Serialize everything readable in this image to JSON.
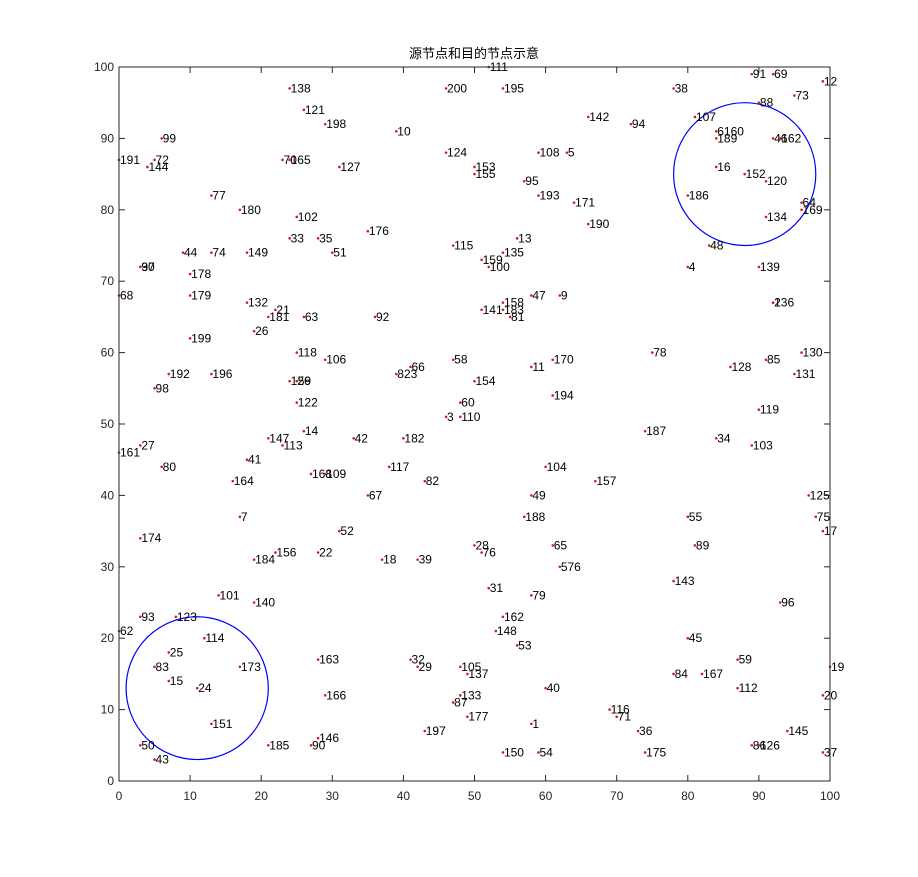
{
  "colors": {
    "background": "#ffffff",
    "axes": "#262626",
    "node": "#d7191c",
    "circle": "#0000ff"
  },
  "chart_data": {
    "type": "scatter",
    "title": "源节点和目的节点示意",
    "xlabel": "",
    "ylabel": "",
    "xlim": [
      0,
      100
    ],
    "ylim": [
      0,
      100
    ],
    "xticks": [
      0,
      10,
      20,
      30,
      40,
      50,
      60,
      70,
      80,
      90,
      100
    ],
    "yticks": [
      0,
      10,
      20,
      30,
      40,
      50,
      60,
      70,
      80,
      90,
      100
    ],
    "grid": false,
    "legend": "none",
    "circles": [
      {
        "cx": 11,
        "cy": 13,
        "r": 10
      },
      {
        "cx": 88,
        "cy": 85,
        "r": 10
      }
    ],
    "points": [
      {
        "label": "111",
        "x": 52,
        "y": 100
      },
      {
        "label": "91",
        "x": 89,
        "y": 99
      },
      {
        "label": "69",
        "x": 92,
        "y": 99
      },
      {
        "label": "12",
        "x": 99,
        "y": 98
      },
      {
        "label": "138",
        "x": 24,
        "y": 97
      },
      {
        "label": "200",
        "x": 46,
        "y": 97
      },
      {
        "label": "195",
        "x": 54,
        "y": 97
      },
      {
        "label": "38",
        "x": 78,
        "y": 97
      },
      {
        "label": "73",
        "x": 95,
        "y": 96
      },
      {
        "label": "88",
        "x": 90,
        "y": 95
      },
      {
        "label": "121",
        "x": 26,
        "y": 94
      },
      {
        "label": "142",
        "x": 66,
        "y": 93
      },
      {
        "label": "107",
        "x": 81,
        "y": 93
      },
      {
        "label": "198",
        "x": 29,
        "y": 92
      },
      {
        "label": "94",
        "x": 72,
        "y": 92
      },
      {
        "label": "10",
        "x": 39,
        "y": 91
      },
      {
        "label": "6160",
        "x": 84,
        "y": 91
      },
      {
        "label": "189",
        "x": 84,
        "y": 90
      },
      {
        "label": "46",
        "x": 92,
        "y": 90
      },
      {
        "label": "162",
        "x": 93,
        "y": 90
      },
      {
        "label": "99",
        "x": 6,
        "y": 90
      },
      {
        "label": "124",
        "x": 46,
        "y": 88
      },
      {
        "label": "108",
        "x": 59,
        "y": 88
      },
      {
        "label": "5",
        "x": 63,
        "y": 88
      },
      {
        "label": "191",
        "x": 0,
        "y": 87
      },
      {
        "label": "72",
        "x": 5,
        "y": 87
      },
      {
        "label": "70",
        "x": 23,
        "y": 87
      },
      {
        "label": "165",
        "x": 24,
        "y": 87
      },
      {
        "label": "144",
        "x": 4,
        "y": 86
      },
      {
        "label": "127",
        "x": 31,
        "y": 86
      },
      {
        "label": "153",
        "x": 50,
        "y": 86
      },
      {
        "label": "16",
        "x": 84,
        "y": 86
      },
      {
        "label": "155",
        "x": 50,
        "y": 85
      },
      {
        "label": "152",
        "x": 88,
        "y": 85
      },
      {
        "label": "95",
        "x": 57,
        "y": 84
      },
      {
        "label": "120",
        "x": 91,
        "y": 84
      },
      {
        "label": "193",
        "x": 59,
        "y": 82
      },
      {
        "label": "77",
        "x": 13,
        "y": 82
      },
      {
        "label": "186",
        "x": 80,
        "y": 82
      },
      {
        "label": "171",
        "x": 64,
        "y": 81
      },
      {
        "label": "64",
        "x": 96,
        "y": 81
      },
      {
        "label": "169",
        "x": 96,
        "y": 80
      },
      {
        "label": "180",
        "x": 17,
        "y": 80
      },
      {
        "label": "102",
        "x": 25,
        "y": 79
      },
      {
        "label": "134",
        "x": 91,
        "y": 79
      },
      {
        "label": "190",
        "x": 66,
        "y": 78
      },
      {
        "label": "176",
        "x": 35,
        "y": 77
      },
      {
        "label": "33",
        "x": 24,
        "y": 76
      },
      {
        "label": "35",
        "x": 28,
        "y": 76
      },
      {
        "label": "13",
        "x": 56,
        "y": 76
      },
      {
        "label": "115",
        "x": 47,
        "y": 75
      },
      {
        "label": "48",
        "x": 83,
        "y": 75
      },
      {
        "label": "44",
        "x": 9,
        "y": 74
      },
      {
        "label": "74",
        "x": 13,
        "y": 74
      },
      {
        "label": "149",
        "x": 18,
        "y": 74
      },
      {
        "label": "51",
        "x": 30,
        "y": 74
      },
      {
        "label": "135",
        "x": 54,
        "y": 74
      },
      {
        "label": "159",
        "x": 51,
        "y": 73
      },
      {
        "label": "97",
        "x": 3,
        "y": 72
      },
      {
        "label": "30",
        "x": 3,
        "y": 72
      },
      {
        "label": "100",
        "x": 52,
        "y": 72
      },
      {
        "label": "4",
        "x": 80,
        "y": 72
      },
      {
        "label": "139",
        "x": 90,
        "y": 72
      },
      {
        "label": "178",
        "x": 10,
        "y": 71
      },
      {
        "label": "68",
        "x": 0,
        "y": 68
      },
      {
        "label": "179",
        "x": 10,
        "y": 68
      },
      {
        "label": "47",
        "x": 58,
        "y": 68
      },
      {
        "label": "9",
        "x": 62,
        "y": 68
      },
      {
        "label": "132",
        "x": 18,
        "y": 67
      },
      {
        "label": "158",
        "x": 54,
        "y": 67
      },
      {
        "label": "2",
        "x": 92,
        "y": 67
      },
      {
        "label": "136",
        "x": 92,
        "y": 67
      },
      {
        "label": "21",
        "x": 22,
        "y": 66
      },
      {
        "label": "141",
        "x": 51,
        "y": 66
      },
      {
        "label": "183",
        "x": 54,
        "y": 66
      },
      {
        "label": "181",
        "x": 21,
        "y": 65
      },
      {
        "label": "63",
        "x": 26,
        "y": 65
      },
      {
        "label": "92",
        "x": 36,
        "y": 65
      },
      {
        "label": "81",
        "x": 55,
        "y": 65
      },
      {
        "label": "26",
        "x": 19,
        "y": 63
      },
      {
        "label": "199",
        "x": 10,
        "y": 62
      },
      {
        "label": "118",
        "x": 25,
        "y": 60
      },
      {
        "label": "78",
        "x": 75,
        "y": 60
      },
      {
        "label": "130",
        "x": 96,
        "y": 60
      },
      {
        "label": "106",
        "x": 29,
        "y": 59
      },
      {
        "label": "58",
        "x": 47,
        "y": 59
      },
      {
        "label": "170",
        "x": 61,
        "y": 59
      },
      {
        "label": "85",
        "x": 91,
        "y": 59
      },
      {
        "label": "66",
        "x": 41,
        "y": 58
      },
      {
        "label": "11",
        "x": 58,
        "y": 58
      },
      {
        "label": "128",
        "x": 86,
        "y": 58
      },
      {
        "label": "192",
        "x": 7,
        "y": 57
      },
      {
        "label": "196",
        "x": 13,
        "y": 57
      },
      {
        "label": "823",
        "x": 39,
        "y": 57
      },
      {
        "label": "131",
        "x": 95,
        "y": 57
      },
      {
        "label": "126",
        "x": 24,
        "y": 56
      },
      {
        "label": "59",
        "x": 25,
        "y": 56
      },
      {
        "label": "154",
        "x": 50,
        "y": 56
      },
      {
        "label": "98",
        "x": 5,
        "y": 55
      },
      {
        "label": "194",
        "x": 61,
        "y": 54
      },
      {
        "label": "122",
        "x": 25,
        "y": 53
      },
      {
        "label": "60",
        "x": 48,
        "y": 53
      },
      {
        "label": "119",
        "x": 90,
        "y": 52
      },
      {
        "label": "3",
        "x": 46,
        "y": 51
      },
      {
        "label": "110",
        "x": 48,
        "y": 51
      },
      {
        "label": "14",
        "x": 26,
        "y": 49
      },
      {
        "label": "187",
        "x": 74,
        "y": 49
      },
      {
        "label": "147",
        "x": 21,
        "y": 48
      },
      {
        "label": "42",
        "x": 33,
        "y": 48
      },
      {
        "label": "182",
        "x": 40,
        "y": 48
      },
      {
        "label": "34",
        "x": 84,
        "y": 48
      },
      {
        "label": "113",
        "x": 23,
        "y": 47
      },
      {
        "label": "103",
        "x": 89,
        "y": 47
      },
      {
        "label": "27",
        "x": 3,
        "y": 47
      },
      {
        "label": "161",
        "x": 0,
        "y": 46
      },
      {
        "label": "41",
        "x": 18,
        "y": 45
      },
      {
        "label": "80",
        "x": 6,
        "y": 44
      },
      {
        "label": "104",
        "x": 60,
        "y": 44
      },
      {
        "label": "117",
        "x": 38,
        "y": 44
      },
      {
        "label": "168",
        "x": 27,
        "y": 43
      },
      {
        "label": "109",
        "x": 29,
        "y": 43
      },
      {
        "label": "164",
        "x": 16,
        "y": 42
      },
      {
        "label": "82",
        "x": 43,
        "y": 42
      },
      {
        "label": "157",
        "x": 67,
        "y": 42
      },
      {
        "label": "67",
        "x": 35,
        "y": 40
      },
      {
        "label": "49",
        "x": 58,
        "y": 40
      },
      {
        "label": "125",
        "x": 97,
        "y": 40
      },
      {
        "label": "7",
        "x": 17,
        "y": 37
      },
      {
        "label": "188",
        "x": 57,
        "y": 37
      },
      {
        "label": "55",
        "x": 80,
        "y": 37
      },
      {
        "label": "75",
        "x": 98,
        "y": 37
      },
      {
        "label": "52",
        "x": 31,
        "y": 35
      },
      {
        "label": "17",
        "x": 99,
        "y": 35
      },
      {
        "label": "174",
        "x": 3,
        "y": 34
      },
      {
        "label": "28",
        "x": 50,
        "y": 33
      },
      {
        "label": "65",
        "x": 61,
        "y": 33
      },
      {
        "label": "89",
        "x": 81,
        "y": 33
      },
      {
        "label": "156",
        "x": 22,
        "y": 32
      },
      {
        "label": "22",
        "x": 28,
        "y": 32
      },
      {
        "label": "76",
        "x": 51,
        "y": 32
      },
      {
        "label": "184",
        "x": 19,
        "y": 31
      },
      {
        "label": "18",
        "x": 37,
        "y": 31
      },
      {
        "label": "39",
        "x": 42,
        "y": 31
      },
      {
        "label": "576",
        "x": 62,
        "y": 30
      },
      {
        "label": "143",
        "x": 78,
        "y": 28
      },
      {
        "label": "31",
        "x": 52,
        "y": 27
      },
      {
        "label": "101",
        "x": 14,
        "y": 26
      },
      {
        "label": "79",
        "x": 58,
        "y": 26
      },
      {
        "label": "140",
        "x": 19,
        "y": 25
      },
      {
        "label": "96",
        "x": 93,
        "y": 25
      },
      {
        "label": "93",
        "x": 3,
        "y": 23
      },
      {
        "label": "123",
        "x": 8,
        "y": 23
      },
      {
        "label": "162",
        "x": 54,
        "y": 23
      },
      {
        "label": "62",
        "x": 0,
        "y": 21
      },
      {
        "label": "148",
        "x": 53,
        "y": 21
      },
      {
        "label": "114",
        "x": 12,
        "y": 20
      },
      {
        "label": "45",
        "x": 80,
        "y": 20
      },
      {
        "label": "53",
        "x": 56,
        "y": 19
      },
      {
        "label": "25",
        "x": 7,
        "y": 18
      },
      {
        "label": "163",
        "x": 28,
        "y": 17
      },
      {
        "label": "32",
        "x": 41,
        "y": 17
      },
      {
        "label": "59",
        "x": 87,
        "y": 17
      },
      {
        "label": "29",
        "x": 42,
        "y": 16
      },
      {
        "label": "83",
        "x": 5,
        "y": 16
      },
      {
        "label": "173",
        "x": 17,
        "y": 16
      },
      {
        "label": "105",
        "x": 48,
        "y": 16
      },
      {
        "label": "19",
        "x": 100,
        "y": 16
      },
      {
        "label": "137",
        "x": 49,
        "y": 15
      },
      {
        "label": "84",
        "x": 78,
        "y": 15
      },
      {
        "label": "167",
        "x": 82,
        "y": 15
      },
      {
        "label": "15",
        "x": 7,
        "y": 14
      },
      {
        "label": "24",
        "x": 11,
        "y": 13
      },
      {
        "label": "40",
        "x": 60,
        "y": 13
      },
      {
        "label": "112",
        "x": 87,
        "y": 13
      },
      {
        "label": "166",
        "x": 29,
        "y": 12
      },
      {
        "label": "133",
        "x": 48,
        "y": 12
      },
      {
        "label": "20",
        "x": 99,
        "y": 12
      },
      {
        "label": "87",
        "x": 47,
        "y": 11
      },
      {
        "label": "116",
        "x": 69,
        "y": 10
      },
      {
        "label": "177",
        "x": 49,
        "y": 9
      },
      {
        "label": "71",
        "x": 70,
        "y": 9
      },
      {
        "label": "151",
        "x": 13,
        "y": 8
      },
      {
        "label": "1",
        "x": 58,
        "y": 8
      },
      {
        "label": "197",
        "x": 43,
        "y": 7
      },
      {
        "label": "36",
        "x": 73,
        "y": 7
      },
      {
        "label": "145",
        "x": 94,
        "y": 7
      },
      {
        "label": "146",
        "x": 28,
        "y": 6
      },
      {
        "label": "50",
        "x": 3,
        "y": 5
      },
      {
        "label": "185",
        "x": 21,
        "y": 5
      },
      {
        "label": "90",
        "x": 27,
        "y": 5
      },
      {
        "label": "86",
        "x": 89,
        "y": 5
      },
      {
        "label": "126",
        "x": 90,
        "y": 5
      },
      {
        "label": "150",
        "x": 54,
        "y": 4
      },
      {
        "label": "54",
        "x": 59,
        "y": 4
      },
      {
        "label": "175",
        "x": 74,
        "y": 4
      },
      {
        "label": "37",
        "x": 99,
        "y": 4
      },
      {
        "label": "43",
        "x": 5,
        "y": 3
      }
    ]
  }
}
